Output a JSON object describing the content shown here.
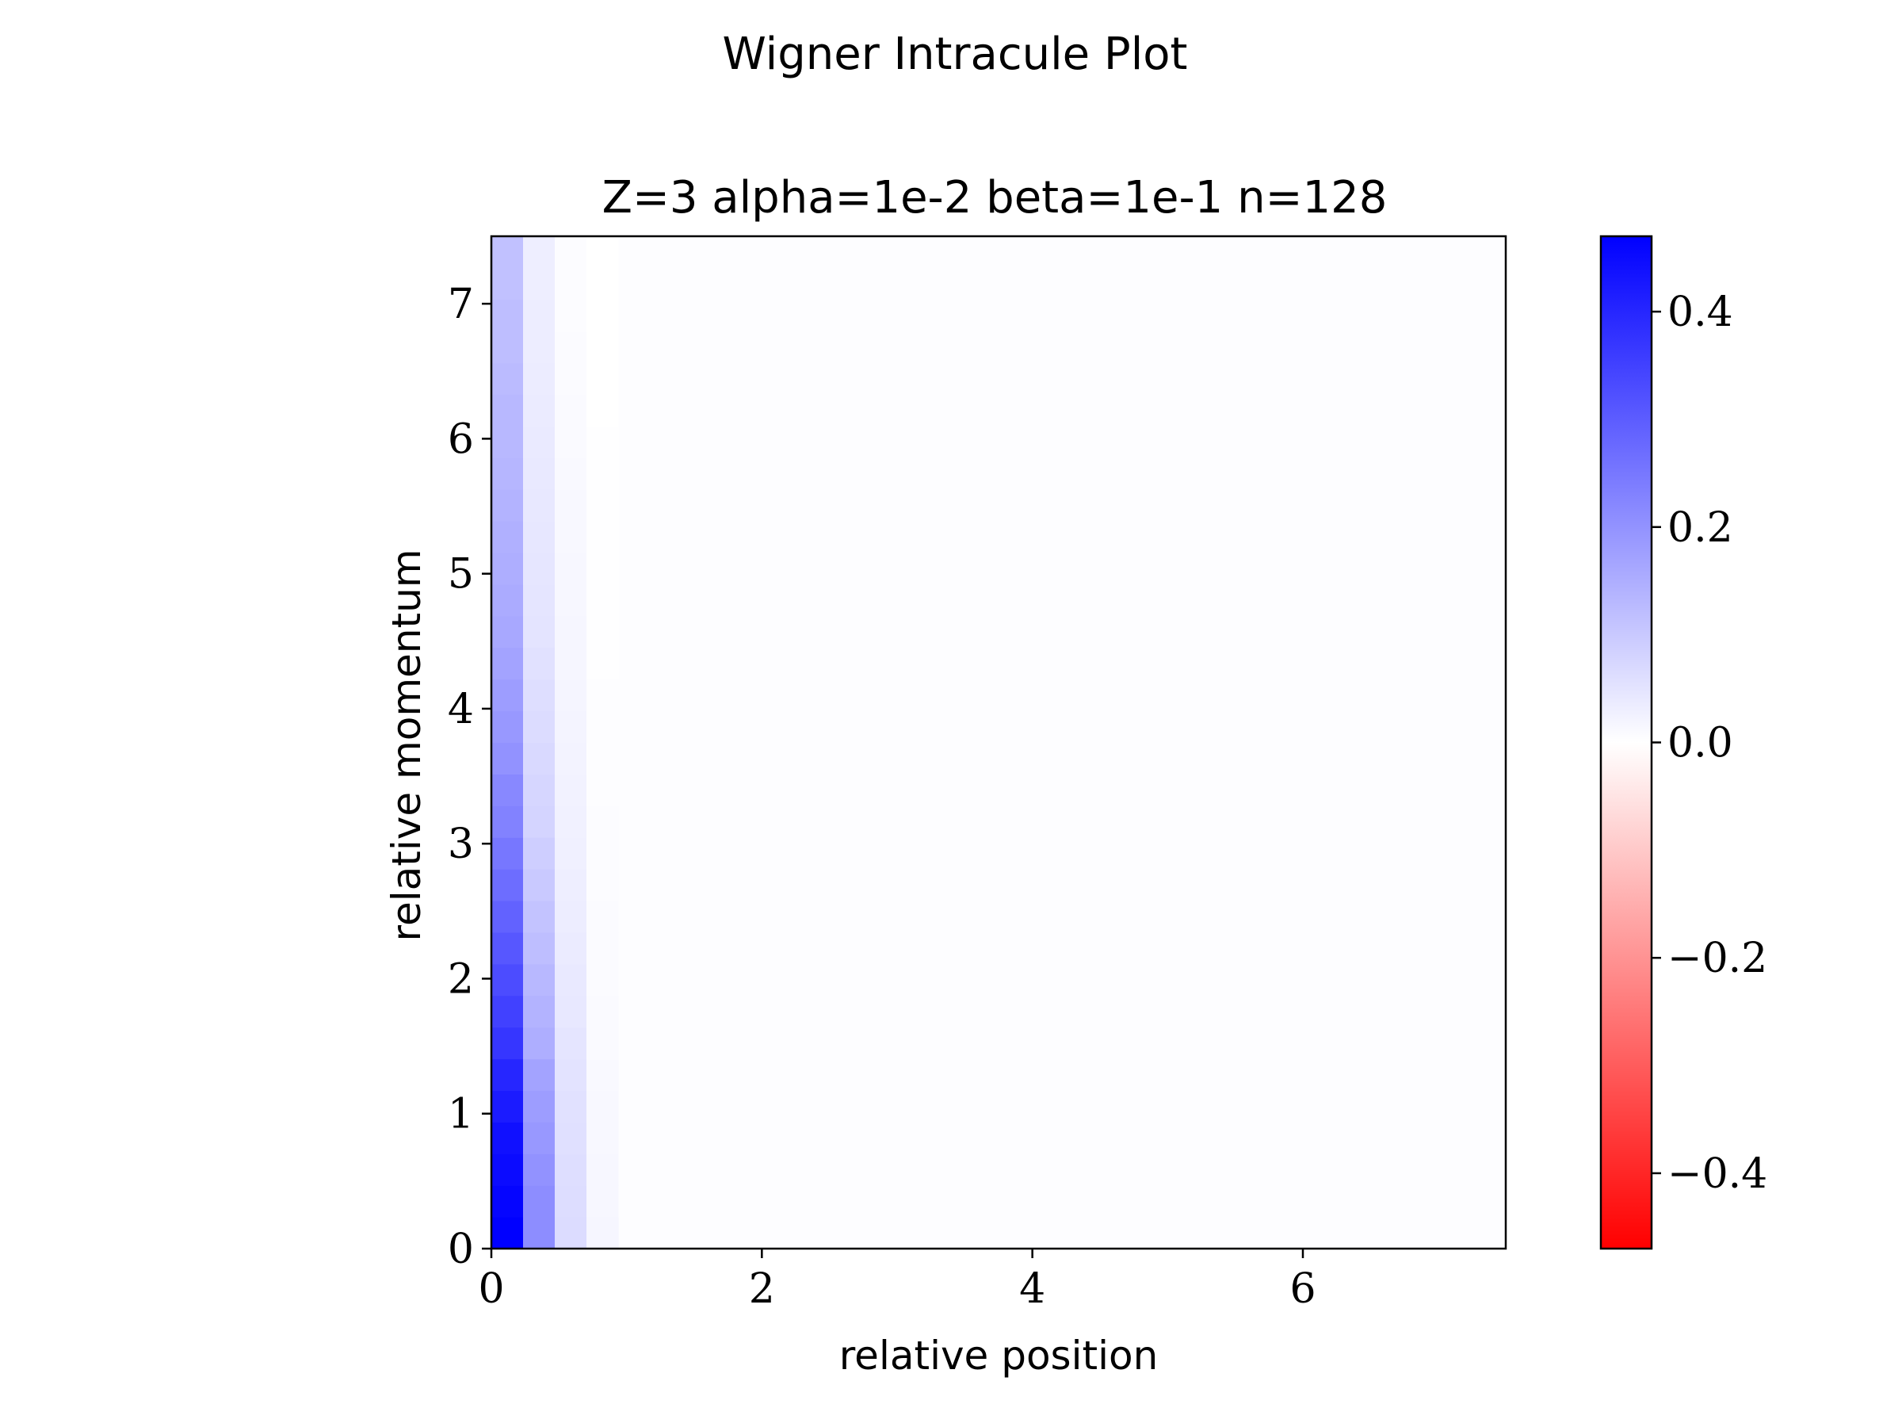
{
  "figure_title": "Wigner Intracule Plot",
  "chart_data": {
    "type": "heatmap",
    "title": "Z=3 alpha=1e-2 beta=1e-1 n=128",
    "xlabel": "relative position",
    "ylabel": "relative momentum",
    "xlim": [
      0,
      7.5
    ],
    "ylim": [
      0,
      7.5
    ],
    "cell_size": 0.234375,
    "xticks": [
      0,
      2,
      4,
      6
    ],
    "xtick_labels": [
      "0",
      "2",
      "4",
      "6"
    ],
    "yticks": [
      0,
      1,
      2,
      3,
      4,
      5,
      6,
      7
    ],
    "ytick_labels": [
      "0",
      "1",
      "2",
      "3",
      "4",
      "5",
      "6",
      "7"
    ],
    "grid": false,
    "colormap": "bwr_r",
    "colorbar": {
      "vmin": -0.47,
      "vmax": 0.47,
      "ticks": [
        0.4,
        0.2,
        0.0,
        -0.2,
        -0.4
      ],
      "tick_labels": [
        "0.4",
        "0.2",
        "0.0",
        "−0.2",
        "−0.4"
      ],
      "low_color": "#ff0000",
      "mid_color": "#ffffff",
      "high_color": "#0000ff"
    },
    "columns": [
      {
        "x_start": 0.0,
        "values": [
          0.47,
          0.46,
          0.45,
          0.44,
          0.42,
          0.4,
          0.37,
          0.35,
          0.33,
          0.31,
          0.29,
          0.27,
          0.25,
          0.23,
          0.22,
          0.2,
          0.19,
          0.18,
          0.17,
          0.16,
          0.155,
          0.15,
          0.145,
          0.14,
          0.135,
          0.13,
          0.13,
          0.125,
          0.12,
          0.12,
          0.115,
          0.115
        ]
      },
      {
        "x_start": 0.234375,
        "values": [
          0.21,
          0.21,
          0.2,
          0.19,
          0.18,
          0.17,
          0.15,
          0.14,
          0.13,
          0.12,
          0.11,
          0.1,
          0.09,
          0.08,
          0.075,
          0.07,
          0.065,
          0.06,
          0.055,
          0.05,
          0.048,
          0.046,
          0.044,
          0.042,
          0.04,
          0.038,
          0.036,
          0.035,
          0.034,
          0.033,
          0.032,
          0.031
        ]
      },
      {
        "x_start": 0.46875,
        "values": [
          0.065,
          0.063,
          0.061,
          0.058,
          0.055,
          0.051,
          0.047,
          0.043,
          0.04,
          0.037,
          0.034,
          0.031,
          0.028,
          0.026,
          0.024,
          0.022,
          0.02,
          0.018,
          0.017,
          0.016,
          0.015,
          0.014,
          0.013,
          0.012,
          0.011,
          0.01,
          0.009,
          0.008,
          0.007,
          0.006,
          0.005,
          0.005
        ]
      },
      {
        "x_start": 0.703125,
        "values": [
          0.016,
          0.015,
          0.014,
          0.013,
          0.012,
          0.011,
          0.01,
          0.009,
          0.008,
          0.008,
          0.007,
          0.006,
          0.005,
          0.005,
          0.004,
          0.004,
          0.003,
          0.003,
          0.002,
          0.002,
          0.002,
          0.001,
          0.001,
          0.001,
          0.001,
          0.001,
          0.0,
          0.0,
          0.0,
          0.0,
          0.0,
          0.0
        ]
      }
    ],
    "remaining_value": 0.003
  }
}
